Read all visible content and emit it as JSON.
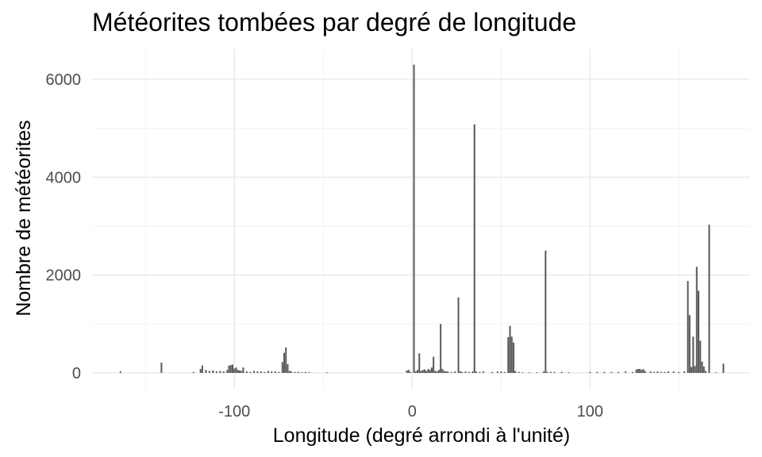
{
  "chart_data": {
    "type": "bar",
    "title": "Météorites tombées par degré de longitude",
    "xlabel": "Longitude (degré arrondi à l'unité)",
    "ylabel": "Nombre de météorites",
    "xlim": [
      -180,
      190
    ],
    "ylim": [
      0,
      6500
    ],
    "x_ticks": [
      -100,
      0,
      100
    ],
    "y_ticks": [
      0,
      2000,
      4000,
      6000
    ],
    "grid": true,
    "bar_color": "#595959",
    "x": [
      -164,
      -141,
      -123,
      -119,
      -118,
      -116,
      -114,
      -112,
      -110,
      -108,
      -106,
      -104,
      -103,
      -102,
      -101,
      -100,
      -99,
      -98,
      -97,
      -96,
      -95,
      -93,
      -91,
      -89,
      -87,
      -85,
      -83,
      -81,
      -79,
      -77,
      -75,
      -73,
      -72,
      -71,
      -70,
      -69,
      -68,
      -66,
      -64,
      -62,
      -60,
      -58,
      -48,
      -3,
      -2,
      -1,
      1,
      2,
      3,
      4,
      5,
      6,
      7,
      8,
      9,
      10,
      11,
      12,
      13,
      14,
      15,
      16,
      17,
      18,
      19,
      20,
      22,
      24,
      26,
      27,
      28,
      30,
      32,
      34,
      35,
      36,
      38,
      40,
      45,
      48,
      50,
      52,
      54,
      55,
      56,
      57,
      58,
      60,
      62,
      66,
      70,
      74,
      75,
      76,
      78,
      80,
      84,
      88,
      100,
      104,
      108,
      112,
      116,
      120,
      124,
      126,
      127,
      128,
      129,
      130,
      131,
      134,
      136,
      138,
      140,
      142,
      144,
      147,
      150,
      153,
      155,
      156,
      157,
      158,
      159,
      160,
      161,
      162,
      163,
      164,
      165,
      167,
      171,
      175
    ],
    "values": [
      30,
      210,
      20,
      80,
      150,
      60,
      40,
      50,
      30,
      40,
      30,
      60,
      150,
      160,
      170,
      90,
      110,
      60,
      50,
      40,
      110,
      30,
      20,
      40,
      30,
      30,
      20,
      40,
      30,
      30,
      20,
      220,
      410,
      520,
      180,
      40,
      30,
      20,
      20,
      10,
      20,
      10,
      10,
      50,
      60,
      20,
      6300,
      30,
      60,
      400,
      40,
      60,
      70,
      40,
      80,
      60,
      110,
      330,
      40,
      30,
      60,
      1000,
      80,
      40,
      30,
      30,
      20,
      30,
      1540,
      30,
      20,
      30,
      20,
      30,
      5080,
      30,
      20,
      30,
      20,
      30,
      30,
      20,
      730,
      960,
      740,
      620,
      40,
      20,
      10,
      10,
      10,
      30,
      2500,
      20,
      20,
      20,
      20,
      10,
      20,
      20,
      20,
      20,
      20,
      30,
      20,
      70,
      80,
      80,
      60,
      80,
      40,
      30,
      20,
      30,
      20,
      20,
      30,
      30,
      20,
      30,
      1880,
      1180,
      120,
      740,
      140,
      2170,
      1680,
      660,
      230,
      130,
      40,
      3030,
      10,
      190
    ]
  }
}
